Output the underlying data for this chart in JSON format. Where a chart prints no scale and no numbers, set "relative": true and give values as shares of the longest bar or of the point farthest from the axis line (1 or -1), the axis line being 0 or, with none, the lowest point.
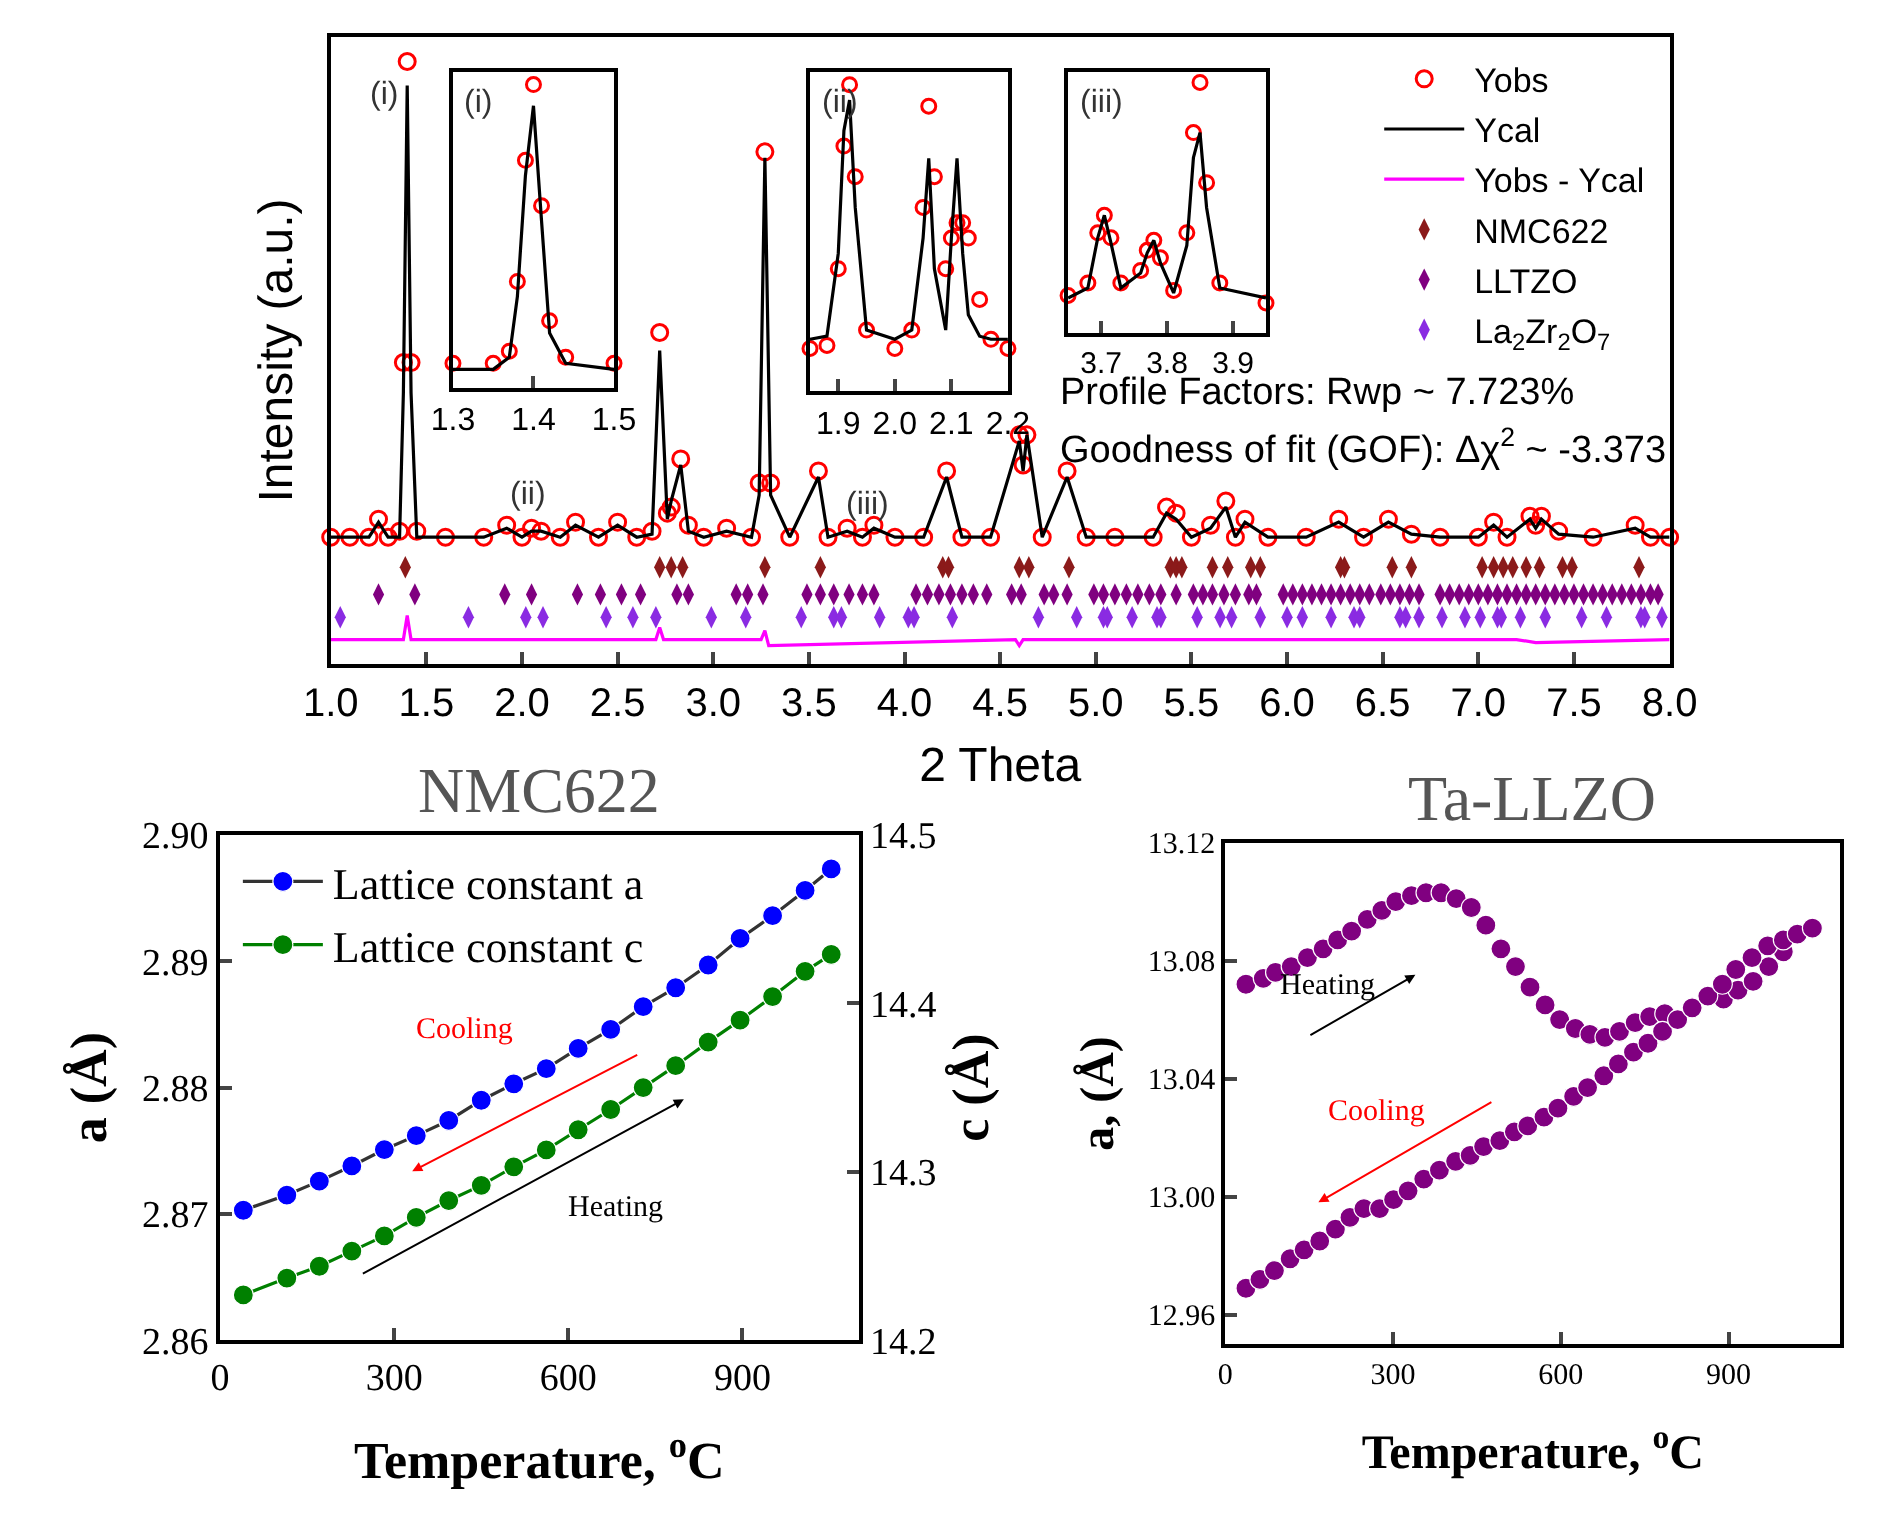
{
  "chart_data": [
    {
      "type": "line",
      "relative": true,
      "xlabel": "2 Theta",
      "ylabel": "Intensity (a.u.)",
      "xlim": [
        1.0,
        8.0
      ],
      "xticks": [
        {
          "value": 1,
          "label": "1.0"
        },
        1.5,
        {
          "value": 2,
          "label": "2.0"
        },
        2.5,
        {
          "value": 3,
          "label": "3.0"
        },
        3.5,
        {
          "value": 4,
          "label": "4.0"
        },
        4.5,
        {
          "value": 5,
          "label": "5.0"
        },
        5.5,
        {
          "value": 6,
          "label": "6.0"
        },
        6.5,
        {
          "value": 7,
          "label": "7.0"
        },
        7.5,
        {
          "value": 8,
          "label": "8.0"
        }
      ],
      "tick_labels": "x",
      "legend": "top right",
      "x": [
        1.0,
        1.1,
        1.2,
        1.25,
        1.3,
        1.36,
        1.38,
        1.4,
        1.42,
        1.45,
        1.6,
        1.8,
        1.92,
        2.0,
        2.05,
        2.1,
        2.2,
        2.28,
        2.4,
        2.5,
        2.6,
        2.68,
        2.72,
        2.76,
        2.78,
        2.83,
        2.87,
        2.95,
        3.07,
        3.2,
        3.24,
        3.27,
        3.3,
        3.4,
        3.55,
        3.6,
        3.7,
        3.78,
        3.84,
        3.95,
        4.1,
        4.22,
        4.3,
        4.45,
        4.6,
        4.62,
        4.64,
        4.72,
        4.85,
        4.95,
        5.1,
        5.3,
        5.37,
        5.42,
        5.5,
        5.6,
        5.68,
        5.73,
        5.78,
        5.9,
        6.1,
        6.27,
        6.4,
        6.53,
        6.65,
        6.8,
        7.0,
        7.08,
        7.15,
        7.27,
        7.3,
        7.33,
        7.42,
        7.6,
        7.82,
        7.9,
        8.0
      ],
      "series": [
        {
          "name": "Yobs",
          "type": "scatter",
          "marker": "circle",
          "color": "#ff0000",
          "values": [
            0.21,
            0.21,
            0.21,
            0.24,
            0.21,
            0.22,
            0.5,
            1.0,
            0.5,
            0.22,
            0.21,
            0.21,
            0.23,
            0.21,
            0.225,
            0.22,
            0.21,
            0.235,
            0.21,
            0.235,
            0.21,
            0.22,
            0.55,
            0.25,
            0.26,
            0.34,
            0.23,
            0.21,
            0.225,
            0.21,
            0.3,
            0.85,
            0.3,
            0.21,
            0.32,
            0.21,
            0.225,
            0.21,
            0.23,
            0.21,
            0.21,
            0.32,
            0.21,
            0.21,
            0.38,
            0.33,
            0.38,
            0.21,
            0.32,
            0.21,
            0.21,
            0.21,
            0.26,
            0.25,
            0.21,
            0.23,
            0.27,
            0.21,
            0.24,
            0.21,
            0.21,
            0.24,
            0.21,
            0.24,
            0.215,
            0.21,
            0.21,
            0.235,
            0.21,
            0.245,
            0.23,
            0.245,
            0.22,
            0.21,
            0.23,
            0.21,
            0.21
          ]
        },
        {
          "name": "Ycal",
          "type": "line",
          "color": "#000000",
          "values": [
            0.21,
            0.21,
            0.21,
            0.235,
            0.21,
            0.21,
            0.45,
            0.96,
            0.45,
            0.21,
            0.21,
            0.21,
            0.225,
            0.21,
            0.22,
            0.22,
            0.21,
            0.23,
            0.21,
            0.23,
            0.21,
            0.215,
            0.52,
            0.24,
            0.27,
            0.33,
            0.22,
            0.21,
            0.22,
            0.21,
            0.28,
            0.84,
            0.28,
            0.21,
            0.31,
            0.21,
            0.22,
            0.21,
            0.225,
            0.21,
            0.21,
            0.31,
            0.21,
            0.21,
            0.37,
            0.32,
            0.38,
            0.21,
            0.31,
            0.21,
            0.21,
            0.21,
            0.25,
            0.24,
            0.21,
            0.225,
            0.26,
            0.21,
            0.235,
            0.21,
            0.21,
            0.235,
            0.21,
            0.235,
            0.215,
            0.21,
            0.21,
            0.23,
            0.21,
            0.24,
            0.225,
            0.24,
            0.215,
            0.21,
            0.225,
            0.21,
            0.21
          ]
        },
        {
          "name": "Yobs - Ycal",
          "type": "line",
          "color": "#ff00ff",
          "x": [
            1.0,
            1.38,
            1.4,
            1.42,
            2.7,
            2.72,
            2.74,
            3.25,
            3.27,
            3.29,
            4.58,
            4.6,
            4.62,
            5.0,
            7.2,
            7.3,
            8.0
          ],
          "values": [
            0.04,
            0.04,
            0.08,
            0.04,
            0.04,
            0.06,
            0.04,
            0.04,
            0.055,
            0.03,
            0.04,
            0.03,
            0.04,
            0.04,
            0.04,
            0.035,
            0.04
          ]
        },
        {
          "name": "NMC622",
          "type": "scatter",
          "marker": "diamond",
          "color": "#8b1a1a",
          "x": [
            1.39,
            2.72,
            2.78,
            2.84,
            3.27,
            3.56,
            4.2,
            4.23,
            4.6,
            4.65,
            4.86,
            5.39,
            5.42,
            5.45,
            5.61,
            5.69,
            5.81,
            5.86,
            6.28,
            6.3,
            6.55,
            6.65,
            7.02,
            7.08,
            7.13,
            7.18,
            7.25,
            7.32,
            7.44,
            7.49,
            7.84
          ],
          "values": [
            0.16,
            0.16,
            0.16,
            0.16,
            0.16,
            0.16,
            0.16,
            0.16,
            0.16,
            0.16,
            0.16,
            0.16,
            0.16,
            0.16,
            0.16,
            0.16,
            0.16,
            0.16,
            0.16,
            0.16,
            0.16,
            0.16,
            0.16,
            0.16,
            0.16,
            0.16,
            0.16,
            0.16,
            0.16,
            0.16,
            0.16
          ]
        },
        {
          "name": "LLTZO",
          "type": "scatter",
          "marker": "diamond",
          "color": "#800080",
          "x": [
            1.25,
            1.44,
            1.91,
            2.05,
            2.29,
            2.41,
            2.52,
            2.62,
            2.81,
            2.87,
            3.12,
            3.18,
            3.26,
            3.49,
            3.56,
            3.63,
            3.71,
            3.78,
            3.84,
            4.06,
            4.12,
            4.18,
            4.24,
            4.3,
            4.36,
            4.43,
            4.56,
            4.61,
            4.73,
            4.78,
            4.85,
            4.99,
            5.04,
            5.1,
            5.16,
            5.22,
            5.28,
            5.34,
            5.42,
            5.51,
            5.56,
            5.61,
            5.67,
            5.73,
            5.8,
            5.84,
            5.98,
            6.03,
            6.08,
            6.13,
            6.18,
            6.23,
            6.28,
            6.33,
            6.38,
            6.43,
            6.49,
            6.54,
            6.59,
            6.64,
            6.69,
            6.8,
            6.85,
            6.9,
            6.95,
            7.0,
            7.05,
            7.1,
            7.15,
            7.2,
            7.25,
            7.3,
            7.35,
            7.4,
            7.45,
            7.5,
            7.55,
            7.6,
            7.65,
            7.7,
            7.75,
            7.8,
            7.85,
            7.9,
            7.94
          ],
          "values": [
            0.115,
            0.115,
            0.115,
            0.115,
            0.115,
            0.115,
            0.115,
            0.115,
            0.115,
            0.115,
            0.115,
            0.115,
            0.115,
            0.115,
            0.115,
            0.115,
            0.115,
            0.115,
            0.115,
            0.115,
            0.115,
            0.115,
            0.115,
            0.115,
            0.115,
            0.115,
            0.115,
            0.115,
            0.115,
            0.115,
            0.115,
            0.115,
            0.115,
            0.115,
            0.115,
            0.115,
            0.115,
            0.115,
            0.115,
            0.115,
            0.115,
            0.115,
            0.115,
            0.115,
            0.115,
            0.115,
            0.115,
            0.115,
            0.115,
            0.115,
            0.115,
            0.115,
            0.115,
            0.115,
            0.115,
            0.115,
            0.115,
            0.115,
            0.115,
            0.115,
            0.115,
            0.115,
            0.115,
            0.115,
            0.115,
            0.115,
            0.115,
            0.115,
            0.115,
            0.115,
            0.115,
            0.115,
            0.115,
            0.115,
            0.115,
            0.115,
            0.115,
            0.115,
            0.115,
            0.115,
            0.115,
            0.115,
            0.115,
            0.115,
            0.115
          ]
        },
        {
          "name": "La$_{2}$Zr$_{2}$O$_{7}$",
          "type": "scatter",
          "marker": "diamond",
          "color": "#8a2be2",
          "x": [
            1.05,
            1.72,
            2.02,
            2.11,
            2.44,
            2.58,
            2.7,
            2.99,
            3.17,
            3.46,
            3.63,
            3.67,
            3.87,
            4.02,
            4.05,
            4.25,
            4.7,
            4.9,
            5.04,
            5.06,
            5.19,
            5.32,
            5.34,
            5.53,
            5.65,
            5.71,
            5.86,
            6.0,
            6.08,
            6.23,
            6.35,
            6.38,
            6.59,
            6.62,
            6.69,
            6.81,
            6.93,
            7.01,
            7.1,
            7.12,
            7.22,
            7.35,
            7.54,
            7.67,
            7.85,
            7.87,
            7.96
          ],
          "values": [
            0.077,
            0.077,
            0.077,
            0.077,
            0.077,
            0.077,
            0.077,
            0.077,
            0.077,
            0.077,
            0.077,
            0.077,
            0.077,
            0.077,
            0.077,
            0.077,
            0.077,
            0.077,
            0.077,
            0.077,
            0.077,
            0.077,
            0.077,
            0.077,
            0.077,
            0.077,
            0.077,
            0.077,
            0.077,
            0.077,
            0.077,
            0.077,
            0.077,
            0.077,
            0.077,
            0.077,
            0.077,
            0.077,
            0.077,
            0.077,
            0.077,
            0.077,
            0.077,
            0.077,
            0.077,
            0.077,
            0.077
          ]
        }
      ],
      "annotations": [
        "(i)",
        "(ii)",
        "(iii)",
        "Profile Factors: Rwp ~ 7.723%",
        "Goodness of fit (GOF): Δχ$^{2}$ ~ -3.373"
      ]
    },
    {
      "type": "line",
      "relative": true,
      "title": "(i)",
      "xlim": [
        1.3,
        1.5
      ],
      "xticks": [
        1.3,
        1.4,
        1.5
      ],
      "tick_labels": "x",
      "x": [
        1.3,
        1.35,
        1.37,
        1.38,
        1.39,
        1.4,
        1.41,
        1.42,
        1.44,
        1.5
      ],
      "series": [
        {
          "type": "scatter",
          "marker": "circle",
          "color": "#ff0000",
          "values": [
            0.08,
            0.08,
            0.12,
            0.35,
            0.75,
            1.0,
            0.6,
            0.22,
            0.1,
            0.08
          ]
        },
        {
          "type": "line",
          "color": "#000000",
          "values": [
            0.06,
            0.06,
            0.1,
            0.3,
            0.7,
            0.93,
            0.55,
            0.18,
            0.08,
            0.06
          ]
        }
      ]
    },
    {
      "type": "line",
      "relative": true,
      "title": "(ii)",
      "xlim": [
        1.85,
        2.2
      ],
      "xticks": [
        1.9,
        {
          "value": 2,
          "label": "2.0"
        },
        2.1,
        2.2
      ],
      "tick_labels": "x",
      "x": [
        1.85,
        1.88,
        1.9,
        1.91,
        1.92,
        1.93,
        1.95,
        2.0,
        2.03,
        2.05,
        2.06,
        2.07,
        2.09,
        2.1,
        2.11,
        2.12,
        2.13,
        2.15,
        2.17,
        2.2
      ],
      "series": [
        {
          "type": "scatter",
          "marker": "circle",
          "color": "#ff0000",
          "values": [
            0.14,
            0.15,
            0.4,
            0.8,
            1.0,
            0.7,
            0.2,
            0.14,
            0.2,
            0.6,
            0.93,
            0.7,
            0.4,
            0.5,
            0.55,
            0.55,
            0.5,
            0.3,
            0.17,
            0.14
          ]
        },
        {
          "type": "line",
          "color": "#000000",
          "values": [
            0.17,
            0.18,
            0.45,
            0.85,
            0.95,
            0.6,
            0.2,
            0.17,
            0.2,
            0.5,
            0.76,
            0.4,
            0.2,
            0.5,
            0.76,
            0.45,
            0.25,
            0.18,
            0.17,
            0.17
          ]
        }
      ]
    },
    {
      "type": "line",
      "relative": true,
      "title": "(iii)",
      "xlim": [
        3.65,
        3.95
      ],
      "xticks": [
        3.7,
        3.8,
        3.9
      ],
      "tick_labels": "x",
      "x": [
        3.65,
        3.68,
        3.695,
        3.705,
        3.715,
        3.73,
        3.76,
        3.77,
        3.78,
        3.79,
        3.81,
        3.83,
        3.84,
        3.85,
        3.86,
        3.88,
        3.95
      ],
      "series": [
        {
          "type": "scatter",
          "marker": "circle",
          "color": "#ff0000",
          "values": [
            0.15,
            0.2,
            0.4,
            0.47,
            0.38,
            0.2,
            0.25,
            0.33,
            0.37,
            0.3,
            0.17,
            0.4,
            0.8,
            1.0,
            0.6,
            0.2,
            0.12
          ]
        },
        {
          "type": "line",
          "color": "#000000",
          "values": [
            0.14,
            0.18,
            0.38,
            0.47,
            0.36,
            0.18,
            0.24,
            0.32,
            0.37,
            0.28,
            0.16,
            0.35,
            0.7,
            0.8,
            0.5,
            0.18,
            0.14
          ]
        }
      ]
    },
    {
      "type": "line",
      "title": "NMC622",
      "xlabel": "Temperature, $^{o}$C",
      "ylabel": "a (Å)",
      "y2label": "c (Å)",
      "xlim": [
        0,
        1100
      ],
      "xticks": [
        0,
        300,
        600,
        900
      ],
      "ylim": [
        2.86,
        2.9
      ],
      "yticks": [
        2.86,
        2.87,
        2.88,
        2.89,
        {
          "value": 2.9,
          "label": "2.90"
        }
      ],
      "y2lim": [
        14.2,
        14.5
      ],
      "y2ticks": [
        14.2,
        14.3,
        14.4,
        14.5
      ],
      "legend": "top left",
      "marker": "circle",
      "x": [
        40,
        115,
        171,
        227,
        283,
        338,
        394,
        450,
        506,
        562,
        617,
        673,
        729,
        785,
        841,
        896,
        952,
        1008,
        1053
      ],
      "series": [
        {
          "name": "Lattice constant a",
          "color": "#0000ff",
          "values": [
            2.8703,
            2.8715,
            2.8726,
            2.8738,
            2.8751,
            2.8762,
            2.8774,
            2.879,
            2.8803,
            2.8815,
            2.8831,
            2.8846,
            2.8864,
            2.8879,
            2.8897,
            2.8918,
            2.8936,
            2.8956,
            2.8973
          ]
        },
        {
          "name": "Lattice constant c",
          "color": "#008000",
          "axis": "y2",
          "values": [
            14.227,
            14.237,
            14.244,
            14.253,
            14.262,
            14.273,
            14.283,
            14.292,
            14.303,
            14.313,
            14.325,
            14.337,
            14.35,
            14.363,
            14.377,
            14.39,
            14.404,
            14.419,
            14.429
          ]
        }
      ],
      "annotations": [
        "Cooling",
        "Heating"
      ]
    },
    {
      "type": "scatter",
      "title": "Ta-LLZO",
      "xlabel": "Temperature, $^{o}$C",
      "ylabel": "a, (Å)",
      "xlim": [
        0,
        1100
      ],
      "xticks": [
        0,
        300,
        600,
        900
      ],
      "ylim": [
        12.95,
        13.12
      ],
      "yticks": [
        12.96,
        {
          "value": 13,
          "label": "13.00"
        },
        13.04,
        13.08,
        13.12
      ],
      "marker": "circle",
      "series": [
        {
          "color": "#800080",
          "x": [
            37,
            68,
            90,
            118,
            147,
            175,
            201,
            226,
            254,
            280,
            305,
            333,
            359,
            386,
            413,
            440,
            466,
            493,
            519,
            545,
            572,
            598,
            626,
            652,
            679,
            705,
            733,
            759,
            786,
            812,
            837,
            863,
            891,
            917,
            944,
            972,
            998
          ],
          "values": [
            13.072,
            13.074,
            13.076,
            13.078,
            13.081,
            13.084,
            13.087,
            13.09,
            13.094,
            13.097,
            13.1,
            13.102,
            13.103,
            13.103,
            13.101,
            13.098,
            13.092,
            13.084,
            13.078,
            13.071,
            13.065,
            13.06,
            13.057,
            13.055,
            13.054,
            13.056,
            13.059,
            13.061,
            13.062,
            null,
            null,
            null,
            13.067,
            13.07,
            13.073,
            13.078,
            13.083
          ]
        },
        {
          "color": "#800080",
          "x": [
            37,
            62,
            88,
            116,
            141,
            169,
            197,
            223,
            248,
            276,
            301,
            327,
            355,
            383,
            412,
            438,
            462,
            491,
            517,
            541,
            570,
            595,
            623,
            648,
            677,
            703,
            730,
            756,
            782,
            809,
            835,
            863,
            889,
            913,
            942,
            970,
            998,
            1023,
            1050
          ],
          "values": [
            12.969,
            12.972,
            12.975,
            12.979,
            12.982,
            12.985,
            12.989,
            12.993,
            12.996,
            12.996,
            12.999,
            13.002,
            13.006,
            13.009,
            13.012,
            13.014,
            13.017,
            13.019,
            13.022,
            13.024,
            13.027,
            13.03,
            13.034,
            13.037,
            13.041,
            13.045,
            13.049,
            13.052,
            13.056,
            13.06,
            13.064,
            13.068,
            13.072,
            13.077,
            13.081,
            13.085,
            13.087,
            13.089,
            13.091
          ]
        }
      ],
      "annotations": [
        "Heating",
        "Cooling"
      ]
    }
  ]
}
